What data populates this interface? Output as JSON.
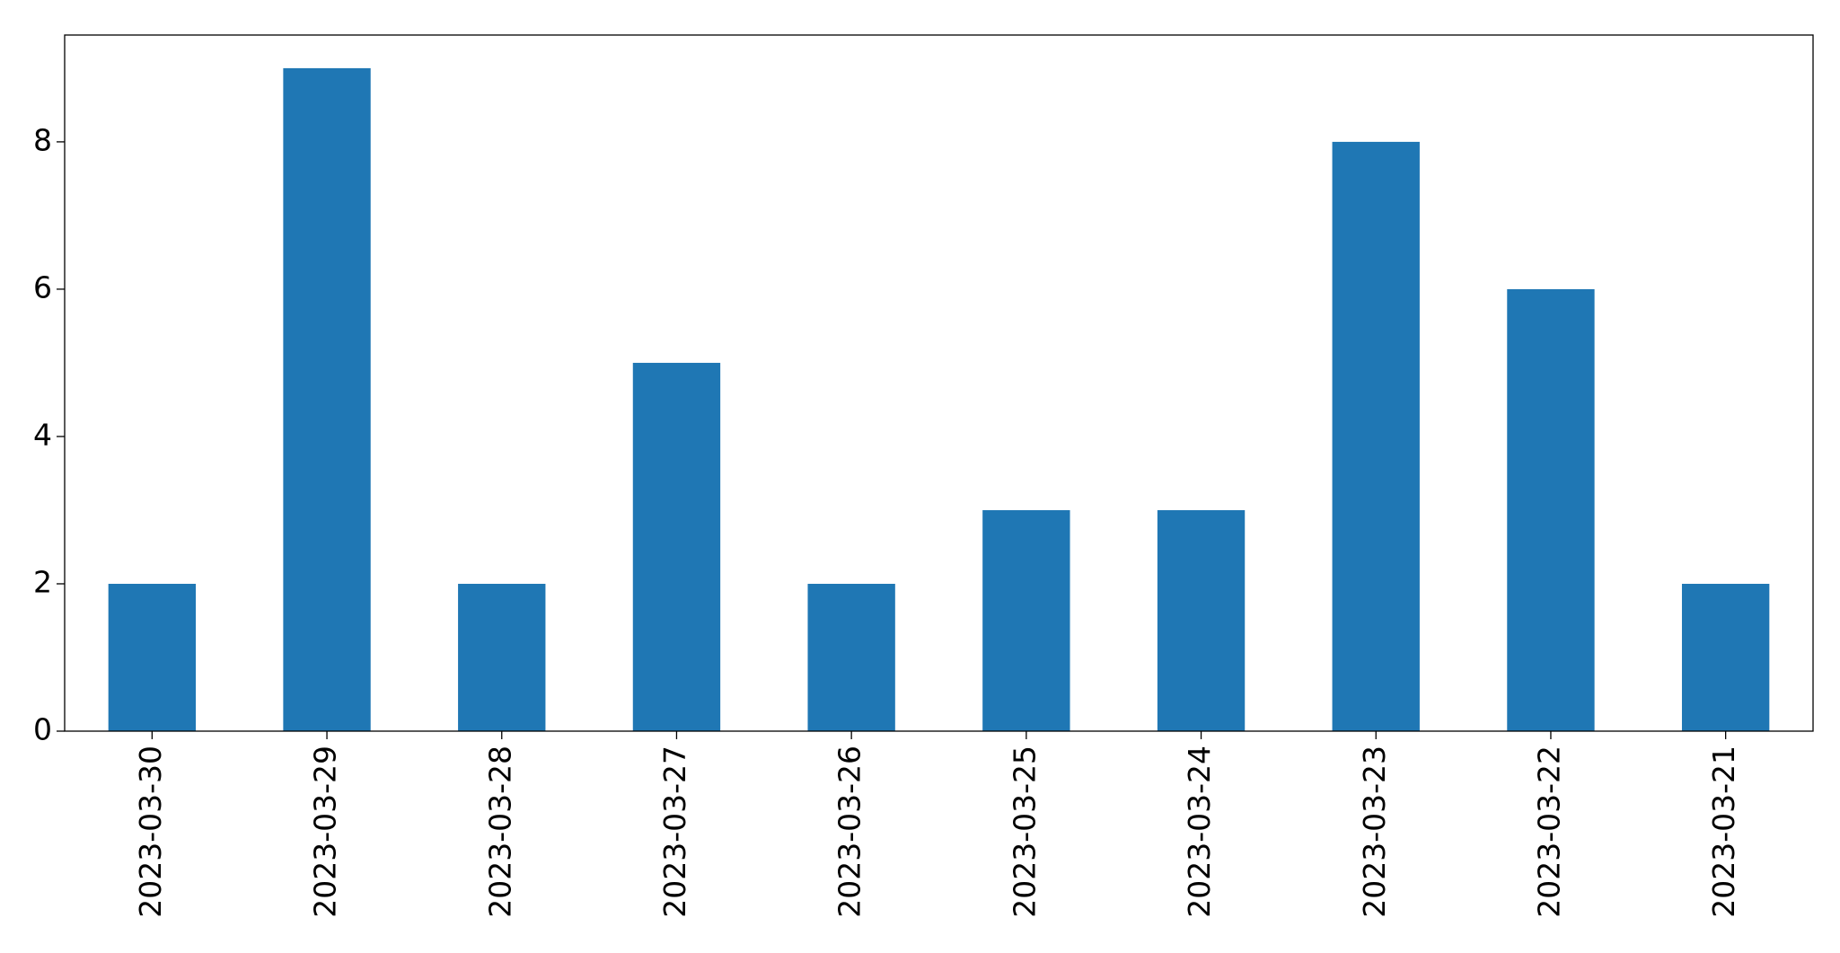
{
  "chart_data": {
    "type": "bar",
    "categories": [
      "2023-03-30",
      "2023-03-29",
      "2023-03-28",
      "2023-03-27",
      "2023-03-26",
      "2023-03-25",
      "2023-03-24",
      "2023-03-23",
      "2023-03-22",
      "2023-03-21"
    ],
    "values": [
      2,
      9,
      2,
      5,
      2,
      3,
      3,
      8,
      6,
      2
    ],
    "color": "#1f77b4",
    "ylim": [
      0,
      9.45
    ],
    "yticks": [
      0,
      2,
      4,
      6,
      8
    ],
    "grid": false
  }
}
